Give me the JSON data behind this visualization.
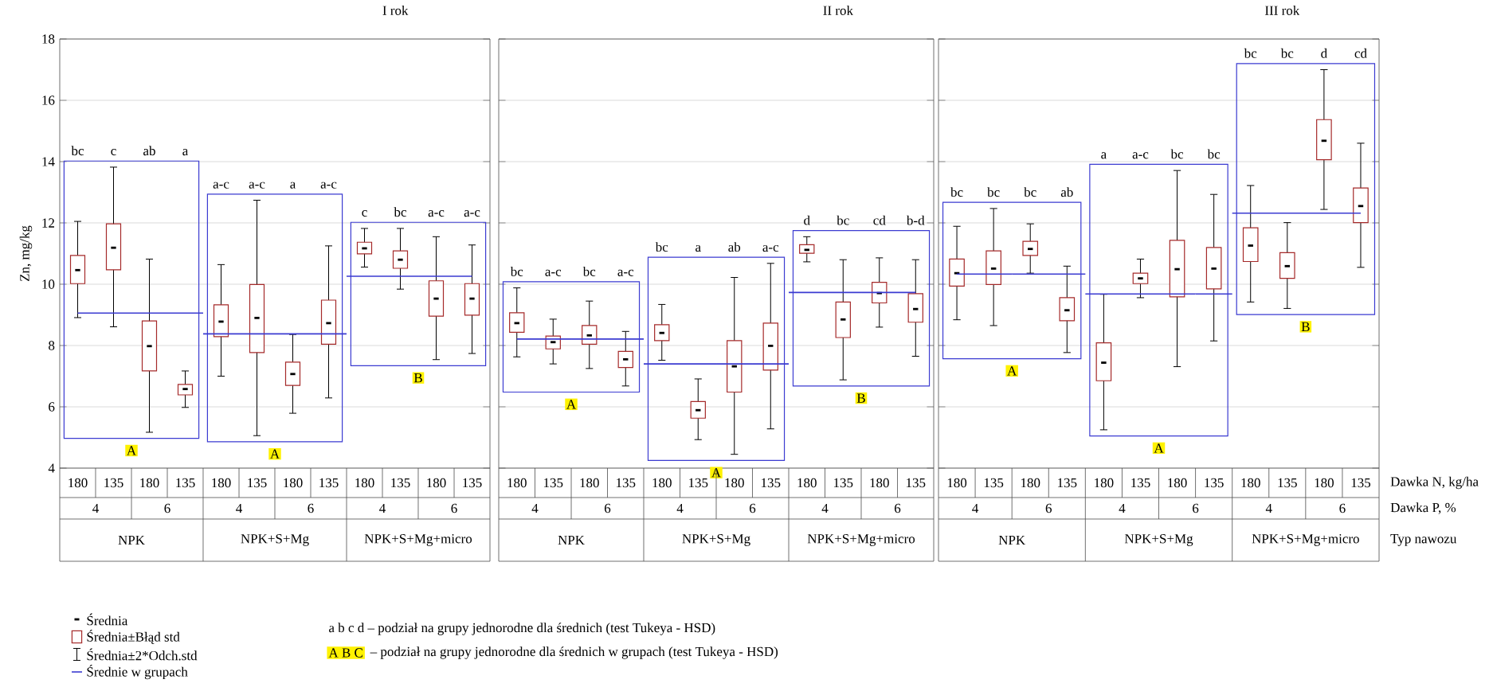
{
  "chart_data": [
    {
      "type": "box",
      "title": "I rok",
      "ylabel": "Zn, mg/kg",
      "categories": [
        "180",
        "135",
        "180",
        "135",
        "180",
        "135",
        "180",
        "135",
        "180",
        "135",
        "180",
        "135"
      ],
      "ylim": [
        4,
        18
      ],
      "yticks": [
        4,
        6,
        8,
        10,
        12,
        14,
        16,
        18
      ],
      "grid": "y",
      "legend": "bottom left",
      "series": [
        {
          "color": "#a52a2a",
          "boxes": [
            {
              "low": 8.91,
              "q1": 10.02,
              "median": 10.46,
              "q3": 10.94,
              "high": 12.05
            },
            {
              "low": 8.61,
              "q1": 10.47,
              "median": 11.19,
              "q3": 11.97,
              "high": 13.82
            },
            {
              "low": 5.17,
              "q1": 7.17,
              "median": 7.98,
              "q3": 8.8,
              "high": 10.82
            },
            {
              "low": 5.98,
              "q1": 6.39,
              "median": 6.58,
              "q3": 6.73,
              "high": 7.17
            },
            {
              "low": 7.0,
              "q1": 8.29,
              "median": 8.78,
              "q3": 9.33,
              "high": 10.64
            },
            {
              "low": 5.06,
              "q1": 7.77,
              "median": 8.9,
              "q3": 9.99,
              "high": 12.74
            },
            {
              "low": 5.79,
              "q1": 6.7,
              "median": 7.07,
              "q3": 7.46,
              "high": 8.36
            },
            {
              "low": 6.29,
              "q1": 8.04,
              "median": 8.73,
              "q3": 9.48,
              "high": 11.25
            },
            {
              "low": 10.56,
              "q1": 10.99,
              "median": 11.17,
              "q3": 11.37,
              "high": 11.82
            },
            {
              "low": 9.84,
              "q1": 10.52,
              "median": 10.8,
              "q3": 11.09,
              "high": 11.82
            },
            {
              "low": 7.54,
              "q1": 8.96,
              "median": 9.53,
              "q3": 10.11,
              "high": 11.55
            },
            {
              "low": 7.74,
              "q1": 8.99,
              "median": 9.53,
              "q3": 10.02,
              "high": 11.28
            }
          ]
        },
        {
          "type": "step",
          "name": "Średnie w grupach",
          "color": "#3b3bd1",
          "values": [
            9.06,
            9.06,
            9.06,
            9.06,
            8.38,
            8.38,
            8.38,
            8.38,
            10.26,
            10.26,
            10.26,
            10.26
          ]
        }
      ],
      "annotations": [
        "bc",
        "c",
        "ab",
        "a",
        "a-c",
        "a-c",
        "a",
        "a-c",
        "c",
        "bc",
        "a-c",
        "a-c",
        "A",
        "A",
        "B",
        "4",
        "6",
        "4",
        "6",
        "4",
        "6",
        "NPK",
        "NPK+S+Mg",
        "NPK+S+Mg+micro",
        "Średnia",
        "Średnia±Błąd std",
        "Średnia±2*Odch.std",
        "a b c d – podział na grupy jednorodne dla średnich  (test Tukeya  - HSD)",
        "A B C",
        "– podział na grupy jednorodne dla średnich w grupach (test Tukeya  - HSD)"
      ]
    },
    {
      "type": "box",
      "title": "II rok",
      "categories": [
        "180",
        "135",
        "180",
        "135",
        "180",
        "135",
        "180",
        "135",
        "180",
        "135",
        "180",
        "135"
      ],
      "ylim": [
        4,
        18
      ],
      "yticks": [
        4,
        6,
        8,
        10,
        12,
        14,
        16,
        18
      ],
      "grid": "y",
      "tick_labels": "x",
      "series": [
        {
          "color": "#a52a2a",
          "boxes": [
            {
              "low": 7.63,
              "q1": 8.43,
              "median": 8.73,
              "q3": 9.07,
              "high": 9.88
            },
            {
              "low": 7.4,
              "q1": 7.89,
              "median": 8.11,
              "q3": 8.31,
              "high": 8.86
            },
            {
              "low": 7.25,
              "q1": 8.04,
              "median": 8.33,
              "q3": 8.65,
              "high": 9.45
            },
            {
              "low": 6.68,
              "q1": 7.28,
              "median": 7.55,
              "q3": 7.81,
              "high": 8.46
            },
            {
              "low": 7.52,
              "q1": 8.16,
              "median": 8.41,
              "q3": 8.68,
              "high": 9.34
            },
            {
              "low": 4.93,
              "q1": 5.63,
              "median": 5.89,
              "q3": 6.17,
              "high": 6.91
            },
            {
              "low": 4.45,
              "q1": 6.48,
              "median": 7.32,
              "q3": 8.16,
              "high": 10.22
            },
            {
              "low": 5.28,
              "q1": 7.2,
              "median": 7.99,
              "q3": 8.73,
              "high": 10.68
            },
            {
              "low": 10.73,
              "q1": 11.01,
              "median": 11.12,
              "q3": 11.29,
              "high": 11.55
            },
            {
              "low": 6.88,
              "q1": 8.26,
              "median": 8.85,
              "q3": 9.42,
              "high": 10.8
            },
            {
              "low": 8.6,
              "q1": 9.39,
              "median": 9.71,
              "q3": 10.06,
              "high": 10.86
            },
            {
              "low": 7.65,
              "q1": 8.76,
              "median": 9.19,
              "q3": 9.69,
              "high": 10.8
            }
          ]
        },
        {
          "type": "step",
          "color": "#3b3bd1",
          "values": [
            8.21,
            8.21,
            8.21,
            8.21,
            7.4,
            7.4,
            7.4,
            7.4,
            9.73,
            9.73,
            9.73,
            9.73
          ]
        }
      ],
      "annotations": [
        "bc",
        "a-c",
        "bc",
        "a-c",
        "bc",
        "a",
        "ab",
        "a-c",
        "d",
        "bc",
        "cd",
        "b-d",
        "A",
        "A",
        "B",
        "4",
        "6",
        "4",
        "6",
        "4",
        "6",
        "NPK",
        "NPK+S+Mg",
        "NPK+S+Mg+micro"
      ]
    },
    {
      "type": "box",
      "title": "III rok",
      "categories": [
        "180",
        "135",
        "180",
        "135",
        "180",
        "135",
        "180",
        "135",
        "180",
        "135",
        "180",
        "135"
      ],
      "ylim": [
        4,
        18
      ],
      "yticks": [
        4,
        6,
        8,
        10,
        12,
        14,
        16,
        18
      ],
      "grid": "y",
      "tick_labels": "x",
      "series": [
        {
          "color": "#a52a2a",
          "boxes": [
            {
              "low": 8.84,
              "q1": 9.94,
              "median": 10.36,
              "q3": 10.82,
              "high": 11.89
            },
            {
              "low": 8.65,
              "q1": 9.99,
              "median": 10.51,
              "q3": 11.09,
              "high": 12.47
            },
            {
              "low": 10.36,
              "q1": 10.94,
              "median": 11.15,
              "q3": 11.4,
              "high": 11.97
            },
            {
              "low": 7.77,
              "q1": 8.81,
              "median": 9.15,
              "q3": 9.56,
              "high": 10.59
            },
            {
              "low": 5.25,
              "q1": 6.85,
              "median": 7.44,
              "q3": 8.09,
              "high": 9.67
            },
            {
              "low": 9.56,
              "q1": 10.02,
              "median": 10.19,
              "q3": 10.36,
              "high": 10.82
            },
            {
              "low": 7.31,
              "q1": 9.59,
              "median": 10.49,
              "q3": 11.43,
              "high": 13.71
            },
            {
              "low": 8.15,
              "q1": 9.85,
              "median": 10.51,
              "q3": 11.2,
              "high": 12.93
            },
            {
              "low": 9.42,
              "q1": 10.74,
              "median": 11.26,
              "q3": 11.84,
              "high": 13.22
            },
            {
              "low": 9.21,
              "q1": 10.19,
              "median": 10.59,
              "q3": 11.03,
              "high": 12.01
            },
            {
              "low": 12.44,
              "q1": 14.06,
              "median": 14.68,
              "q3": 15.37,
              "high": 17.0
            },
            {
              "low": 10.55,
              "q1": 12.01,
              "median": 12.55,
              "q3": 13.14,
              "high": 14.6
            }
          ]
        },
        {
          "type": "step",
          "color": "#3b3bd1",
          "values": [
            10.33,
            10.33,
            10.33,
            10.33,
            9.68,
            9.68,
            9.68,
            9.68,
            12.32,
            12.32,
            12.32,
            12.32
          ]
        }
      ],
      "annotations": [
        "bc",
        "bc",
        "bc",
        "ab",
        "a",
        "a-c",
        "bc",
        "bc",
        "bc",
        "bc",
        "d",
        "cd",
        "A",
        "A",
        "B",
        "4",
        "6",
        "4",
        "6",
        "4",
        "6",
        "NPK",
        "NPK+S+Mg",
        "NPK+S+Mg+micro",
        "Dawka N, kg/ha",
        "Dawka P, %",
        "Typ nawozu"
      ]
    }
  ]
}
